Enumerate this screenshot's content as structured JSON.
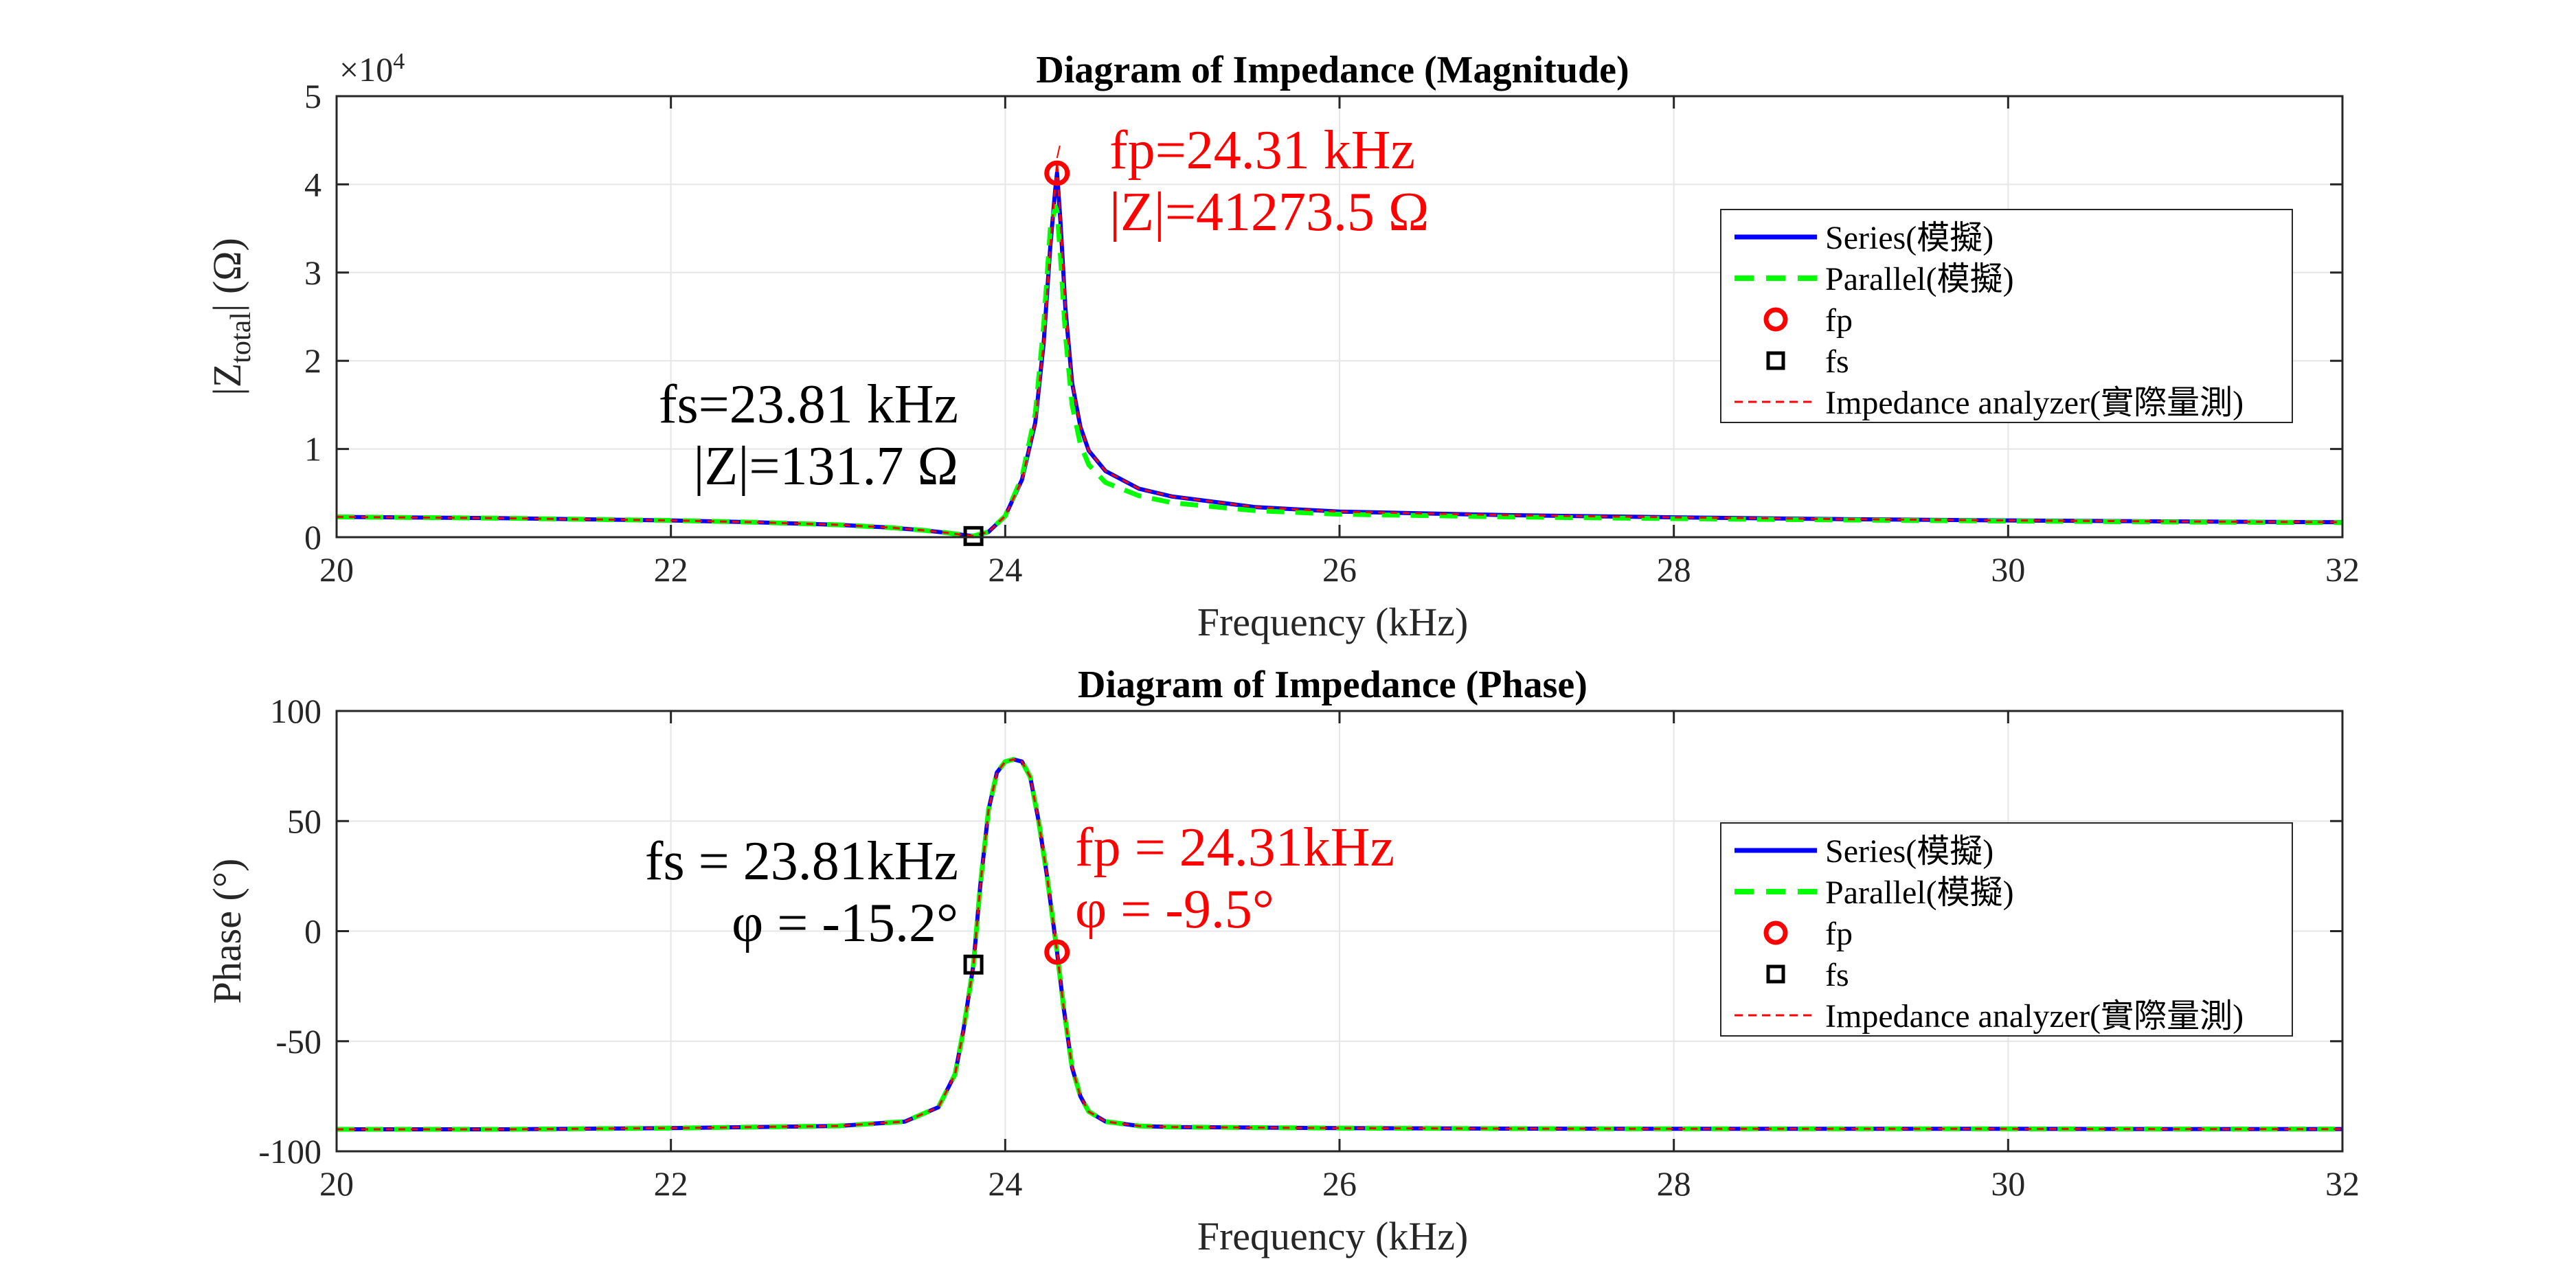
{
  "colors": {
    "series": "#0000ff",
    "parallel": "#00ff00",
    "fp": "#ff0000",
    "fs": "#000000",
    "analyzer": "#ff0000",
    "grid": "#e6e6e6",
    "axis": "#262626"
  },
  "legend": {
    "placement": "right",
    "entries": [
      "Series(模擬)",
      "Parallel(模擬)",
      "fp",
      "fs",
      "Impedance analyzer(實際量測)"
    ]
  },
  "chart_data": [
    {
      "type": "line",
      "title": "Diagram of Impedance (Magnitude)",
      "xlabel": "Frequency (kHz)",
      "ylabel": "|Z",
      "ylabel_sub": "total",
      "ylabel_tail": "|  (Ω)",
      "y_exponent_label": "×10",
      "y_exponent_power": "4",
      "xlim": [
        20,
        32
      ],
      "ylim": [
        0,
        5
      ],
      "xticks": [
        "20",
        "22",
        "24",
        "26",
        "28",
        "30",
        "32"
      ],
      "yticks": [
        "0",
        "1",
        "2",
        "3",
        "4",
        "5"
      ],
      "grid": true,
      "curve_points_x": [
        20,
        21,
        22,
        22.5,
        23,
        23.3,
        23.5,
        23.65,
        23.75,
        23.81,
        23.9,
        24.0,
        24.1,
        24.18,
        24.23,
        24.27,
        24.3,
        24.31,
        24.33,
        24.36,
        24.4,
        24.45,
        24.5,
        24.6,
        24.8,
        25.0,
        25.5,
        26,
        27,
        28,
        29,
        30,
        31,
        32
      ],
      "series": [
        {
          "name": "Series(模擬)",
          "values": [
            0.23,
            0.215,
            0.19,
            0.17,
            0.14,
            0.11,
            0.08,
            0.05,
            0.025,
            0.013,
            0.06,
            0.24,
            0.65,
            1.3,
            2.2,
            3.3,
            3.95,
            4.13,
            3.6,
            2.6,
            1.75,
            1.25,
            0.98,
            0.75,
            0.55,
            0.46,
            0.34,
            0.29,
            0.25,
            0.225,
            0.205,
            0.19,
            0.178,
            0.17
          ]
        },
        {
          "name": "Parallel(模擬)",
          "values": [
            0.23,
            0.215,
            0.19,
            0.17,
            0.14,
            0.11,
            0.08,
            0.05,
            0.025,
            0.013,
            0.06,
            0.24,
            0.68,
            1.4,
            2.4,
            3.5,
            3.75,
            3.7,
            3.2,
            2.3,
            1.5,
            1.05,
            0.82,
            0.62,
            0.47,
            0.39,
            0.3,
            0.26,
            0.23,
            0.21,
            0.195,
            0.183,
            0.172,
            0.165
          ]
        },
        {
          "name": "Impedance analyzer(實際量測)",
          "values": [
            0.23,
            0.215,
            0.19,
            0.17,
            0.14,
            0.11,
            0.08,
            0.05,
            0.025,
            0.013,
            0.06,
            0.24,
            0.65,
            1.3,
            2.2,
            3.3,
            4.0,
            4.25,
            3.6,
            2.6,
            1.75,
            1.25,
            0.98,
            0.75,
            0.55,
            0.46,
            0.34,
            0.29,
            0.25,
            0.225,
            0.205,
            0.19,
            0.178,
            0.17
          ]
        }
      ],
      "markers": {
        "fp": {
          "x": 24.31,
          "y": 4.127
        },
        "fs": {
          "x": 23.81,
          "y": 0.013
        }
      },
      "annotations": {
        "fp_line1": "fp=24.31 kHz",
        "fp_line2": "|Z|=41273.5 Ω",
        "fs_line1": "fs=23.81 kHz",
        "fs_line2": "|Z|=131.7 Ω"
      }
    },
    {
      "type": "line",
      "title": "Diagram of Impedance (Phase)",
      "xlabel": "Frequency (kHz)",
      "ylabel": "Phase (°)",
      "xlim": [
        20,
        32
      ],
      "ylim": [
        -100,
        100
      ],
      "xticks": [
        "20",
        "22",
        "24",
        "26",
        "28",
        "30",
        "32"
      ],
      "yticks": [
        "-100",
        "-50",
        "0",
        "50",
        "100"
      ],
      "grid": true,
      "curve_points_x": [
        20,
        21,
        22,
        23,
        23.4,
        23.6,
        23.7,
        23.75,
        23.81,
        23.85,
        23.9,
        23.95,
        24.0,
        24.05,
        24.1,
        24.15,
        24.2,
        24.25,
        24.31,
        24.35,
        24.4,
        24.45,
        24.5,
        24.6,
        24.8,
        25,
        26,
        27,
        28,
        29,
        30,
        31,
        32
      ],
      "series": [
        {
          "name": "Series(模擬)",
          "values": [
            -90,
            -90,
            -89.5,
            -88.5,
            -86.5,
            -80,
            -65,
            -45,
            -15.2,
            20,
            55,
            72,
            77,
            78,
            77,
            70,
            50,
            25,
            -9.5,
            -35,
            -62,
            -75,
            -82,
            -86.5,
            -88.5,
            -89,
            -89.5,
            -89.7,
            -89.8,
            -89.8,
            -89.8,
            -89.9,
            -89.9
          ]
        },
        {
          "name": "Parallel(模擬)",
          "values": [
            -90,
            -90,
            -89.5,
            -88.5,
            -86.5,
            -80,
            -65,
            -45,
            -15.2,
            20,
            55,
            72,
            77,
            78,
            77,
            70,
            50,
            25,
            -9.5,
            -35,
            -62,
            -75,
            -82,
            -86.5,
            -88.5,
            -89,
            -89.5,
            -89.7,
            -89.8,
            -89.8,
            -89.8,
            -89.9,
            -89.9
          ]
        },
        {
          "name": "Impedance analyzer(實際量測)",
          "values": [
            -90,
            -90,
            -89.5,
            -88.5,
            -86.5,
            -80,
            -65,
            -45,
            -15.2,
            20,
            55,
            72,
            77,
            78,
            77,
            70,
            50,
            25,
            -9.5,
            -35,
            -62,
            -75,
            -82,
            -86.5,
            -88.5,
            -89,
            -89.5,
            -89.7,
            -89.8,
            -89.8,
            -89.8,
            -89.9,
            -89.9
          ]
        }
      ],
      "markers": {
        "fp": {
          "x": 24.31,
          "y": -9.5
        },
        "fs": {
          "x": 23.81,
          "y": -15.2
        }
      },
      "annotations": {
        "fp_line1": "fp = 24.31kHz",
        "fp_line2": "φ = -9.5°",
        "fs_line1": "fs = 23.81kHz",
        "fs_line2": "φ = -15.2°"
      }
    }
  ]
}
